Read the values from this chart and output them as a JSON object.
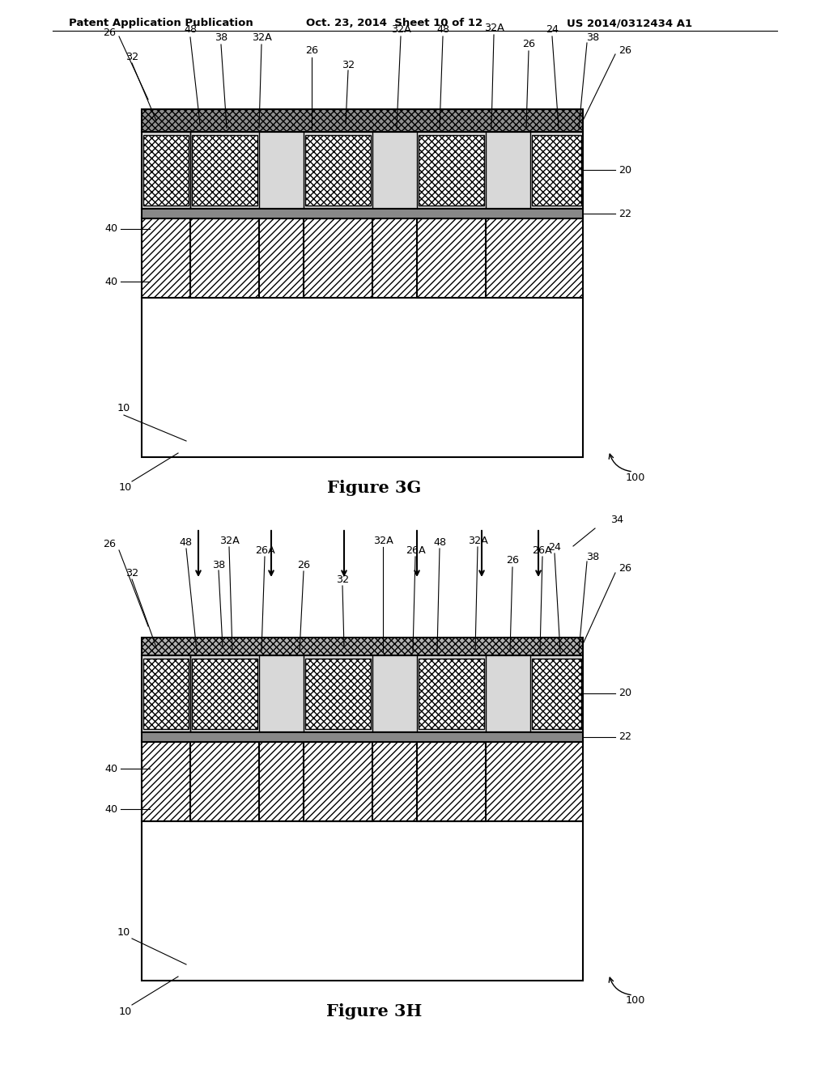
{
  "header_left": "Patent Application Publication",
  "header_mid": "Oct. 23, 2014  Sheet 10 of 12",
  "header_right": "US 2014/0312434 A1",
  "fig3g_label": "Figure 3G",
  "fig3h_label": "Figure 3H",
  "bg_color": "#ffffff",
  "line_color": "#000000"
}
